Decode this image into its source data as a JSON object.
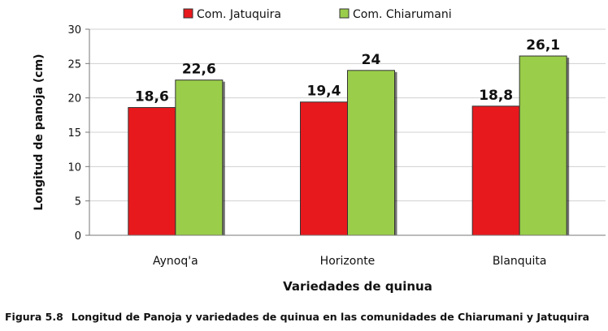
{
  "chart_data": {
    "type": "bar",
    "categories": [
      "Aynoq'a",
      "Horizonte",
      "Blanquita"
    ],
    "series": [
      {
        "name": "Com. Jatuquira",
        "values": [
          18.6,
          19.4,
          18.8
        ],
        "labels": [
          "18,6",
          "19,4",
          "18,8"
        ],
        "color": "#e8191d"
      },
      {
        "name": "Com. Chiarumani",
        "values": [
          22.6,
          24,
          26.1
        ],
        "labels": [
          "22,6",
          "24",
          "26,1"
        ],
        "color": "#9acd4a"
      }
    ],
    "xlabel": "Variedades de quinua",
    "ylabel": "Longitud de panoja (cm)",
    "ylim": [
      0,
      30
    ],
    "yticks": [
      0,
      5,
      10,
      15,
      20,
      25,
      30
    ],
    "grid": true,
    "legend_position": "top"
  },
  "caption": {
    "number": "Figura 5.8",
    "text": "Longitud de Panoja y variedades de quinua en las comunidades de Chiarumani y Jatuquira"
  }
}
